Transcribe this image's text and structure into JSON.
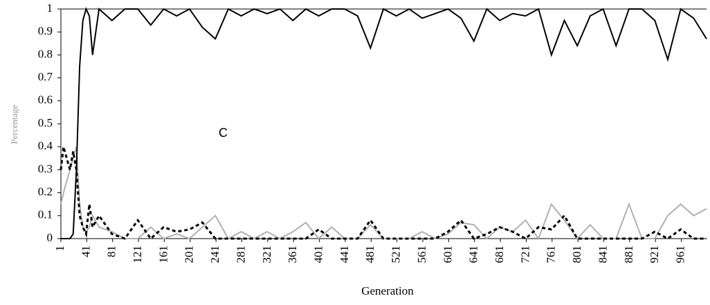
{
  "chart_data": {
    "type": "line",
    "x_label": "Generation",
    "y_label": "Percentage",
    "x": [
      1,
      5,
      10,
      15,
      20,
      25,
      30,
      35,
      40,
      45,
      50,
      60,
      80,
      100,
      120,
      140,
      160,
      180,
      200,
      220,
      240,
      260,
      280,
      300,
      320,
      340,
      360,
      380,
      400,
      420,
      440,
      460,
      480,
      500,
      520,
      540,
      560,
      580,
      600,
      620,
      640,
      660,
      680,
      700,
      720,
      740,
      760,
      780,
      800,
      820,
      840,
      860,
      880,
      900,
      920,
      940,
      960,
      980,
      1000
    ],
    "series": [
      {
        "name": "C",
        "color": "#000000",
        "dash": "solid",
        "values": [
          0,
          0,
          0,
          0,
          0.02,
          0.3,
          0.75,
          0.95,
          1,
          0.97,
          0.8,
          1,
          0.95,
          1,
          1,
          0.93,
          1,
          0.97,
          1,
          0.92,
          0.87,
          1,
          0.97,
          1,
          0.98,
          1,
          0.95,
          1,
          0.97,
          1,
          1,
          0.97,
          0.83,
          1,
          0.97,
          1,
          0.96,
          0.98,
          1,
          0.96,
          0.86,
          1,
          0.95,
          0.98,
          0.97,
          1,
          0.8,
          0.95,
          0.84,
          0.97,
          1,
          0.84,
          1,
          1,
          0.95,
          0.78,
          1,
          0.96,
          0.87
        ]
      },
      {
        "color": "#000000",
        "dash": "dashed",
        "values": [
          0.3,
          0.4,
          0.35,
          0.3,
          0.38,
          0.3,
          0.1,
          0.05,
          0.02,
          0.15,
          0.05,
          0.1,
          0.02,
          0,
          0.08,
          0,
          0.05,
          0.03,
          0.04,
          0.07,
          0,
          0,
          0,
          0,
          0,
          0,
          0,
          0,
          0.04,
          0,
          0,
          0,
          0.08,
          0,
          0,
          0,
          0,
          0,
          0.03,
          0.08,
          0,
          0.02,
          0.05,
          0.03,
          0,
          0.05,
          0.04,
          0.1,
          0,
          0,
          0,
          0,
          0,
          0,
          0.03,
          0,
          0.04,
          0,
          0
        ]
      },
      {
        "color": "#b0b0b0",
        "dash": "solid",
        "values": [
          0.15,
          0.2,
          0.25,
          0.3,
          0.35,
          0.4,
          0.15,
          0.05,
          0.03,
          0.05,
          0.1,
          0.05,
          0.03,
          0,
          0,
          0.05,
          0,
          0.02,
          0,
          0.05,
          0.1,
          0,
          0.03,
          0,
          0.03,
          0,
          0.03,
          0.07,
          0,
          0.05,
          0,
          0,
          0.06,
          0,
          0,
          0,
          0.03,
          0,
          0.02,
          0.07,
          0.06,
          0,
          0.05,
          0.03,
          0.08,
          0,
          0.15,
          0.08,
          0,
          0.06,
          0,
          0,
          0.15,
          0,
          0,
          0.1,
          0.15,
          0.1,
          0.13
        ]
      }
    ],
    "xlim": [
      1,
      1000
    ],
    "xticks": [
      1,
      41,
      81,
      121,
      161,
      201,
      241,
      281,
      321,
      361,
      401,
      441,
      481,
      521,
      561,
      601,
      641,
      681,
      721,
      761,
      801,
      841,
      881,
      921,
      961
    ],
    "ylim": [
      0,
      1
    ],
    "yticks": [
      0,
      0.1,
      0.2,
      0.3,
      0.4,
      0.5,
      0.6,
      0.7,
      0.8,
      0.9,
      1
    ],
    "grid": false
  }
}
